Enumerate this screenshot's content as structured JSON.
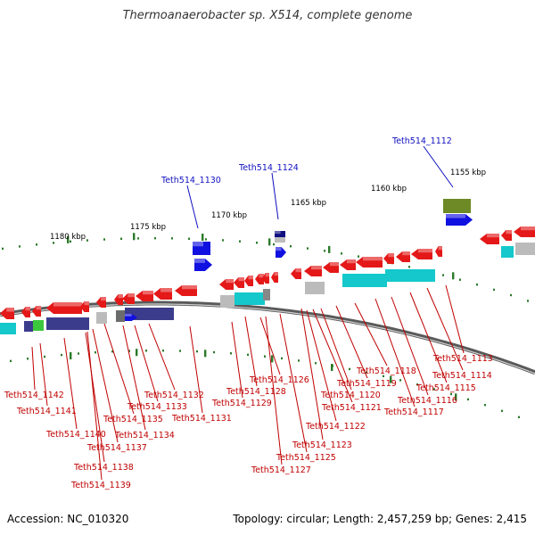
{
  "title": "Thermoanaerobacter sp. X514, complete genome",
  "accession": "Accession: NC_010320",
  "summary": "Topology: circular; Length: 2,457,259 bp; Genes: 2,415",
  "colors": {
    "background": "#ffffff",
    "backbone": "#777777",
    "forward_gene": "#1010e0",
    "reverse_gene": "#e41818",
    "rna_cyan": "#14c8cc",
    "label_upper": "#1010c0",
    "label_lower": "#c00000",
    "tick": "#2a7a2a"
  },
  "scale_labels": [
    "1180 kbp",
    "1175 kbp",
    "1170 kbp",
    "1165 kbp",
    "1160 kbp",
    "1155 kbp"
  ],
  "upper_labels": [
    "Teth514_1130",
    "Teth514_1124",
    "Teth514_1112"
  ],
  "lower_labels": [
    "Teth514_1142",
    "Teth514_1141",
    "Teth514_1140",
    "Teth514_1138",
    "Teth514_1139",
    "Teth514_1137",
    "Teth514_1135",
    "Teth514_1134",
    "Teth514_1133",
    "Teth514_1132",
    "Teth514_1131",
    "Teth514_1129",
    "Teth514_1128",
    "Teth514_1126",
    "Teth514_1127",
    "Teth514_1125",
    "Teth514_1123",
    "Teth514_1122",
    "Teth514_1121",
    "Teth514_1120",
    "Teth514_1119",
    "Teth514_1118",
    "Teth514_1117",
    "Teth514_1116",
    "Teth514_1115",
    "Teth514_1114",
    "Teth514_1113"
  ]
}
